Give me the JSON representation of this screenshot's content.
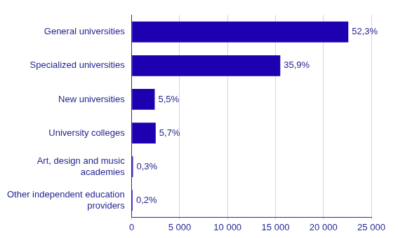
{
  "chart_data": {
    "type": "bar",
    "orientation": "horizontal",
    "categories": [
      "General universities",
      "Specialized universities",
      "New universities",
      "University colleges",
      "Art, design and music academies",
      "Other independent education providers"
    ],
    "values": [
      22600,
      15500,
      2400,
      2500,
      130,
      90
    ],
    "share_labels": [
      "52,3%",
      "35,9%",
      "5,5%",
      "5,7%",
      "0,3%",
      "0,2%"
    ],
    "color": "#1f00b0",
    "xlim": [
      0,
      25000
    ],
    "xticks": [
      0,
      {
        "value": 5000,
        "label": "5 000"
      },
      {
        "value": 10000,
        "label": "10 000"
      },
      {
        "value": 15000,
        "label": "15 000"
      },
      {
        "value": 20000,
        "label": "20 000"
      },
      {
        "value": 25000,
        "label": "25 000"
      }
    ],
    "grid": true
  }
}
